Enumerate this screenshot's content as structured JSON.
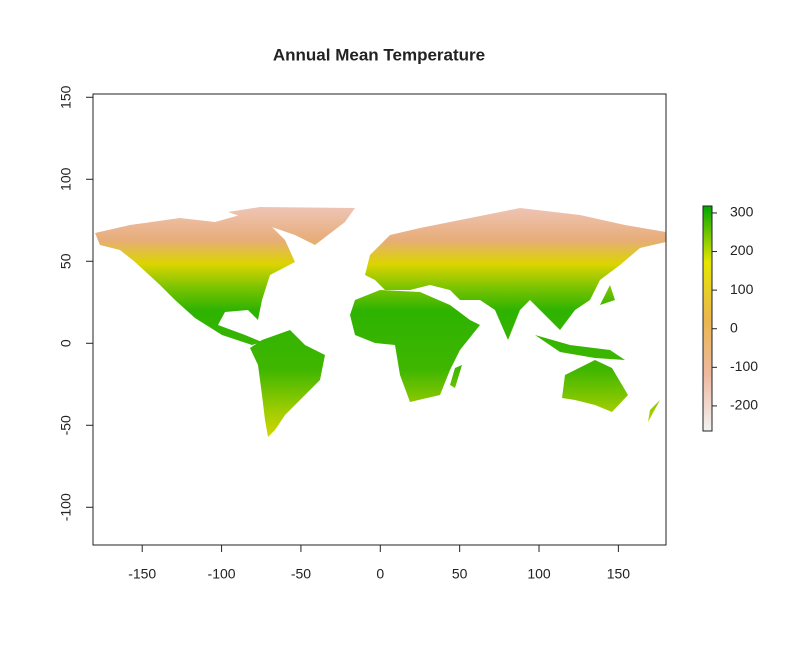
{
  "chart_data": {
    "type": "raster",
    "title": "Annual Mean Temperature",
    "xlim": [
      -181,
      180
    ],
    "xticks": [
      -150,
      -100,
      -50,
      0,
      50,
      100,
      150
    ],
    "ylim": [
      -123,
      152
    ],
    "yticks": [
      -100,
      -50,
      0,
      50,
      100,
      150
    ],
    "colorbar": {
      "zlim": [
        -265,
        318
      ],
      "ticks": [
        -200,
        -100,
        0,
        100,
        200,
        300
      ],
      "colors": [
        "#f2f2f2",
        "#eeb99f",
        "#eab64e",
        "#e6e600",
        "#00a600"
      ]
    }
  }
}
